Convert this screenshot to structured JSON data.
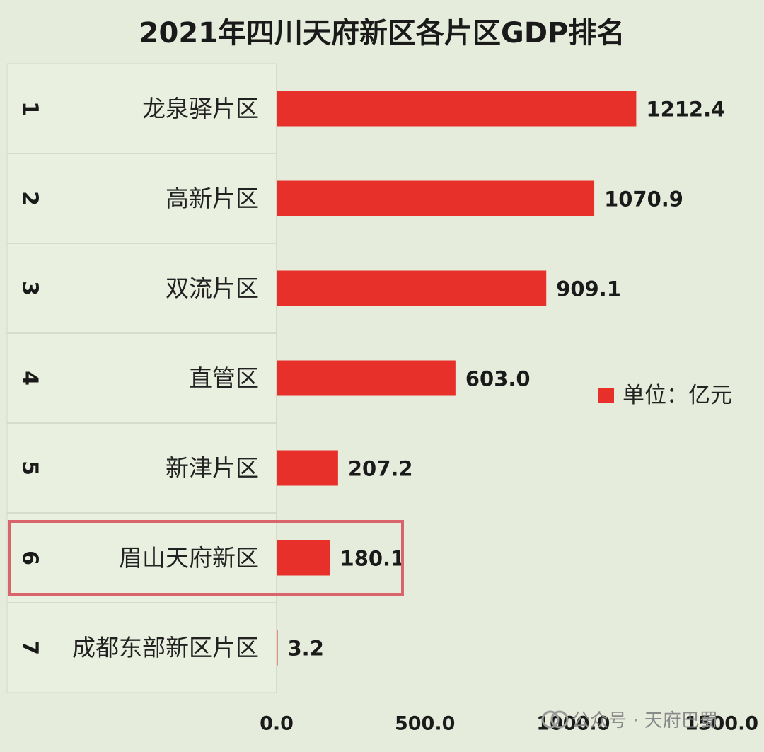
{
  "chart_data": {
    "type": "bar",
    "orientation": "horizontal",
    "title": "2021年四川天府新区各片区GDP排名",
    "ranks": [
      "1",
      "2",
      "3",
      "4",
      "5",
      "6",
      "7"
    ],
    "categories": [
      "龙泉驿片区",
      "高新片区",
      "双流片区",
      "直管区",
      "新津片区",
      "眉山天府新区",
      "成都东部新区片区"
    ],
    "values": [
      1212.4,
      1070.9,
      909.1,
      603.0,
      207.2,
      180.1,
      3.2
    ],
    "value_labels": [
      "1212.4",
      "1070.9",
      "909.1",
      "603.0",
      "207.2",
      "180.1",
      "3.2"
    ],
    "xlim": [
      0,
      1500
    ],
    "x_ticks": [
      0,
      500,
      1000,
      1500
    ],
    "x_tick_labels": [
      "0.0",
      "500.0",
      "1000.0",
      "1500.0"
    ],
    "series": [
      {
        "name": "单位：亿元",
        "color": "#e8302a"
      }
    ],
    "legend_position": "right",
    "highlighted_category": "眉山天府新区",
    "highlight_color": "#d9646b",
    "grid": false
  },
  "watermark": {
    "icon": "wechat-channel-icon",
    "text": "公众号 · 天府巴蜀"
  }
}
